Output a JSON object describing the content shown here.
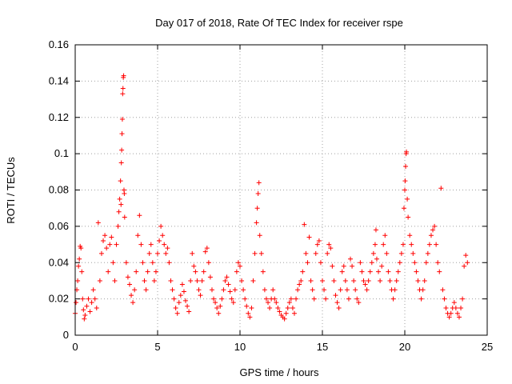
{
  "chart_data": {
    "type": "scatter",
    "title": "Day 017 of 2018, Rate Of TEC Index for receiver rspe",
    "xlabel": "GPS time / hours",
    "ylabel": "ROTI / TECUs",
    "xlim": [
      0,
      25
    ],
    "ylim": [
      0,
      0.16
    ],
    "xticks": [
      0,
      5,
      10,
      15,
      20,
      25
    ],
    "yticks": [
      0,
      0.02,
      0.04,
      0.06,
      0.08,
      0.1,
      0.12,
      0.14,
      0.16
    ],
    "xtick_labels": [
      "0",
      "5",
      "10",
      "15",
      "20",
      "25"
    ],
    "ytick_labels": [
      "0",
      "0.02",
      "0.04",
      "0.06",
      "0.08",
      "0.1",
      "0.12",
      "0.14",
      "0.16"
    ],
    "grid": true,
    "marker": "+",
    "marker_color": "#ff0000",
    "series": [
      {
        "name": "ROTI",
        "points": [
          [
            0.0,
            0.012
          ],
          [
            0.05,
            0.018
          ],
          [
            0.1,
            0.025
          ],
          [
            0.15,
            0.03
          ],
          [
            0.2,
            0.038
          ],
          [
            0.25,
            0.042
          ],
          [
            0.3,
            0.049
          ],
          [
            0.35,
            0.048
          ],
          [
            0.4,
            0.035
          ],
          [
            0.45,
            0.02
          ],
          [
            0.5,
            0.014
          ],
          [
            0.55,
            0.009
          ],
          [
            0.6,
            0.011
          ],
          [
            0.7,
            0.016
          ],
          [
            0.8,
            0.02
          ],
          [
            0.9,
            0.013
          ],
          [
            1.0,
            0.018
          ],
          [
            1.1,
            0.025
          ],
          [
            1.2,
            0.02
          ],
          [
            1.3,
            0.015
          ],
          [
            1.4,
            0.062
          ],
          [
            1.5,
            0.03
          ],
          [
            1.6,
            0.045
          ],
          [
            1.7,
            0.052
          ],
          [
            1.8,
            0.055
          ],
          [
            1.9,
            0.048
          ],
          [
            2.0,
            0.035
          ],
          [
            2.1,
            0.05
          ],
          [
            2.2,
            0.054
          ],
          [
            2.3,
            0.04
          ],
          [
            2.4,
            0.03
          ],
          [
            2.5,
            0.05
          ],
          [
            2.6,
            0.06
          ],
          [
            2.65,
            0.068
          ],
          [
            2.7,
            0.075
          ],
          [
            2.75,
            0.085
          ],
          [
            2.78,
            0.072
          ],
          [
            2.8,
            0.095
          ],
          [
            2.82,
            0.102
          ],
          [
            2.84,
            0.111
          ],
          [
            2.86,
            0.119
          ],
          [
            2.88,
            0.133
          ],
          [
            2.9,
            0.136
          ],
          [
            2.92,
            0.142
          ],
          [
            2.94,
            0.143
          ],
          [
            2.96,
            0.08
          ],
          [
            2.98,
            0.078
          ],
          [
            3.0,
            0.065
          ],
          [
            3.1,
            0.04
          ],
          [
            3.2,
            0.032
          ],
          [
            3.3,
            0.028
          ],
          [
            3.4,
            0.022
          ],
          [
            3.5,
            0.018
          ],
          [
            3.6,
            0.025
          ],
          [
            3.7,
            0.035
          ],
          [
            3.8,
            0.055
          ],
          [
            3.9,
            0.066
          ],
          [
            4.0,
            0.05
          ],
          [
            4.1,
            0.04
          ],
          [
            4.2,
            0.03
          ],
          [
            4.3,
            0.025
          ],
          [
            4.4,
            0.035
          ],
          [
            4.5,
            0.045
          ],
          [
            4.6,
            0.05
          ],
          [
            4.7,
            0.04
          ],
          [
            4.8,
            0.03
          ],
          [
            4.9,
            0.035
          ],
          [
            5.0,
            0.045
          ],
          [
            5.1,
            0.052
          ],
          [
            5.2,
            0.06
          ],
          [
            5.3,
            0.055
          ],
          [
            5.4,
            0.05
          ],
          [
            5.5,
            0.045
          ],
          [
            5.6,
            0.048
          ],
          [
            5.7,
            0.04
          ],
          [
            5.8,
            0.03
          ],
          [
            5.9,
            0.025
          ],
          [
            6.0,
            0.02
          ],
          [
            6.1,
            0.015
          ],
          [
            6.2,
            0.012
          ],
          [
            6.3,
            0.018
          ],
          [
            6.4,
            0.022
          ],
          [
            6.5,
            0.028
          ],
          [
            6.6,
            0.024
          ],
          [
            6.7,
            0.019
          ],
          [
            6.8,
            0.016
          ],
          [
            6.9,
            0.013
          ],
          [
            7.0,
            0.03
          ],
          [
            7.1,
            0.045
          ],
          [
            7.2,
            0.038
          ],
          [
            7.3,
            0.035
          ],
          [
            7.4,
            0.03
          ],
          [
            7.5,
            0.025
          ],
          [
            7.6,
            0.022
          ],
          [
            7.7,
            0.03
          ],
          [
            7.8,
            0.035
          ],
          [
            7.9,
            0.046
          ],
          [
            8.0,
            0.048
          ],
          [
            8.1,
            0.04
          ],
          [
            8.2,
            0.032
          ],
          [
            8.3,
            0.025
          ],
          [
            8.4,
            0.02
          ],
          [
            8.5,
            0.018
          ],
          [
            8.6,
            0.015
          ],
          [
            8.7,
            0.012
          ],
          [
            8.8,
            0.016
          ],
          [
            8.9,
            0.02
          ],
          [
            9.0,
            0.025
          ],
          [
            9.1,
            0.03
          ],
          [
            9.2,
            0.032
          ],
          [
            9.3,
            0.028
          ],
          [
            9.4,
            0.024
          ],
          [
            9.5,
            0.02
          ],
          [
            9.6,
            0.018
          ],
          [
            9.7,
            0.025
          ],
          [
            9.8,
            0.035
          ],
          [
            9.9,
            0.04
          ],
          [
            10.0,
            0.038
          ],
          [
            10.1,
            0.03
          ],
          [
            10.2,
            0.025
          ],
          [
            10.3,
            0.02
          ],
          [
            10.4,
            0.016
          ],
          [
            10.5,
            0.012
          ],
          [
            10.6,
            0.01
          ],
          [
            10.7,
            0.015
          ],
          [
            10.8,
            0.03
          ],
          [
            10.9,
            0.045
          ],
          [
            11.0,
            0.062
          ],
          [
            11.05,
            0.07
          ],
          [
            11.1,
            0.078
          ],
          [
            11.15,
            0.084
          ],
          [
            11.2,
            0.055
          ],
          [
            11.3,
            0.045
          ],
          [
            11.4,
            0.035
          ],
          [
            11.5,
            0.025
          ],
          [
            11.6,
            0.02
          ],
          [
            11.7,
            0.018
          ],
          [
            11.8,
            0.015
          ],
          [
            11.9,
            0.02
          ],
          [
            12.0,
            0.025
          ],
          [
            12.1,
            0.02
          ],
          [
            12.2,
            0.018
          ],
          [
            12.3,
            0.015
          ],
          [
            12.4,
            0.013
          ],
          [
            12.5,
            0.011
          ],
          [
            12.6,
            0.01
          ],
          [
            12.7,
            0.009
          ],
          [
            12.8,
            0.012
          ],
          [
            12.9,
            0.015
          ],
          [
            13.0,
            0.018
          ],
          [
            13.1,
            0.02
          ],
          [
            13.2,
            0.015
          ],
          [
            13.3,
            0.012
          ],
          [
            13.4,
            0.02
          ],
          [
            13.5,
            0.025
          ],
          [
            13.6,
            0.028
          ],
          [
            13.7,
            0.03
          ],
          [
            13.8,
            0.035
          ],
          [
            13.9,
            0.061
          ],
          [
            14.0,
            0.045
          ],
          [
            14.1,
            0.04
          ],
          [
            14.2,
            0.054
          ],
          [
            14.3,
            0.03
          ],
          [
            14.4,
            0.025
          ],
          [
            14.5,
            0.02
          ],
          [
            14.6,
            0.045
          ],
          [
            14.7,
            0.05
          ],
          [
            14.8,
            0.052
          ],
          [
            14.9,
            0.04
          ],
          [
            15.0,
            0.03
          ],
          [
            15.1,
            0.025
          ],
          [
            15.2,
            0.02
          ],
          [
            15.3,
            0.045
          ],
          [
            15.4,
            0.05
          ],
          [
            15.5,
            0.048
          ],
          [
            15.6,
            0.038
          ],
          [
            15.7,
            0.03
          ],
          [
            15.8,
            0.022
          ],
          [
            15.9,
            0.018
          ],
          [
            16.0,
            0.015
          ],
          [
            16.1,
            0.025
          ],
          [
            16.2,
            0.035
          ],
          [
            16.3,
            0.038
          ],
          [
            16.4,
            0.03
          ],
          [
            16.5,
            0.025
          ],
          [
            16.6,
            0.02
          ],
          [
            16.7,
            0.042
          ],
          [
            16.8,
            0.038
          ],
          [
            16.9,
            0.03
          ],
          [
            17.0,
            0.025
          ],
          [
            17.1,
            0.02
          ],
          [
            17.2,
            0.018
          ],
          [
            17.3,
            0.04
          ],
          [
            17.4,
            0.035
          ],
          [
            17.5,
            0.03
          ],
          [
            17.6,
            0.028
          ],
          [
            17.7,
            0.025
          ],
          [
            17.8,
            0.03
          ],
          [
            17.9,
            0.035
          ],
          [
            18.0,
            0.04
          ],
          [
            18.1,
            0.045
          ],
          [
            18.2,
            0.05
          ],
          [
            18.25,
            0.058
          ],
          [
            18.3,
            0.042
          ],
          [
            18.4,
            0.035
          ],
          [
            18.5,
            0.03
          ],
          [
            18.6,
            0.038
          ],
          [
            18.7,
            0.05
          ],
          [
            18.8,
            0.055
          ],
          [
            18.9,
            0.045
          ],
          [
            19.0,
            0.035
          ],
          [
            19.1,
            0.03
          ],
          [
            19.2,
            0.025
          ],
          [
            19.3,
            0.02
          ],
          [
            19.4,
            0.025
          ],
          [
            19.5,
            0.03
          ],
          [
            19.6,
            0.035
          ],
          [
            19.7,
            0.04
          ],
          [
            19.8,
            0.045
          ],
          [
            19.9,
            0.05
          ],
          [
            19.95,
            0.07
          ],
          [
            20.0,
            0.08
          ],
          [
            20.02,
            0.085
          ],
          [
            20.05,
            0.093
          ],
          [
            20.08,
            0.1
          ],
          [
            20.1,
            0.101
          ],
          [
            20.15,
            0.075
          ],
          [
            20.2,
            0.065
          ],
          [
            20.3,
            0.055
          ],
          [
            20.4,
            0.05
          ],
          [
            20.5,
            0.045
          ],
          [
            20.6,
            0.04
          ],
          [
            20.7,
            0.035
          ],
          [
            20.8,
            0.03
          ],
          [
            20.9,
            0.025
          ],
          [
            21.0,
            0.02
          ],
          [
            21.1,
            0.025
          ],
          [
            21.2,
            0.03
          ],
          [
            21.3,
            0.04
          ],
          [
            21.4,
            0.045
          ],
          [
            21.5,
            0.05
          ],
          [
            21.6,
            0.055
          ],
          [
            21.7,
            0.058
          ],
          [
            21.8,
            0.06
          ],
          [
            21.9,
            0.05
          ],
          [
            22.0,
            0.04
          ],
          [
            22.1,
            0.035
          ],
          [
            22.2,
            0.081
          ],
          [
            22.3,
            0.025
          ],
          [
            22.4,
            0.02
          ],
          [
            22.5,
            0.015
          ],
          [
            22.6,
            0.012
          ],
          [
            22.7,
            0.01
          ],
          [
            22.8,
            0.012
          ],
          [
            22.9,
            0.015
          ],
          [
            23.0,
            0.018
          ],
          [
            23.1,
            0.015
          ],
          [
            23.2,
            0.012
          ],
          [
            23.3,
            0.01
          ],
          [
            23.4,
            0.015
          ],
          [
            23.5,
            0.02
          ],
          [
            23.6,
            0.038
          ],
          [
            23.7,
            0.044
          ],
          [
            23.8,
            0.04
          ]
        ]
      }
    ]
  }
}
